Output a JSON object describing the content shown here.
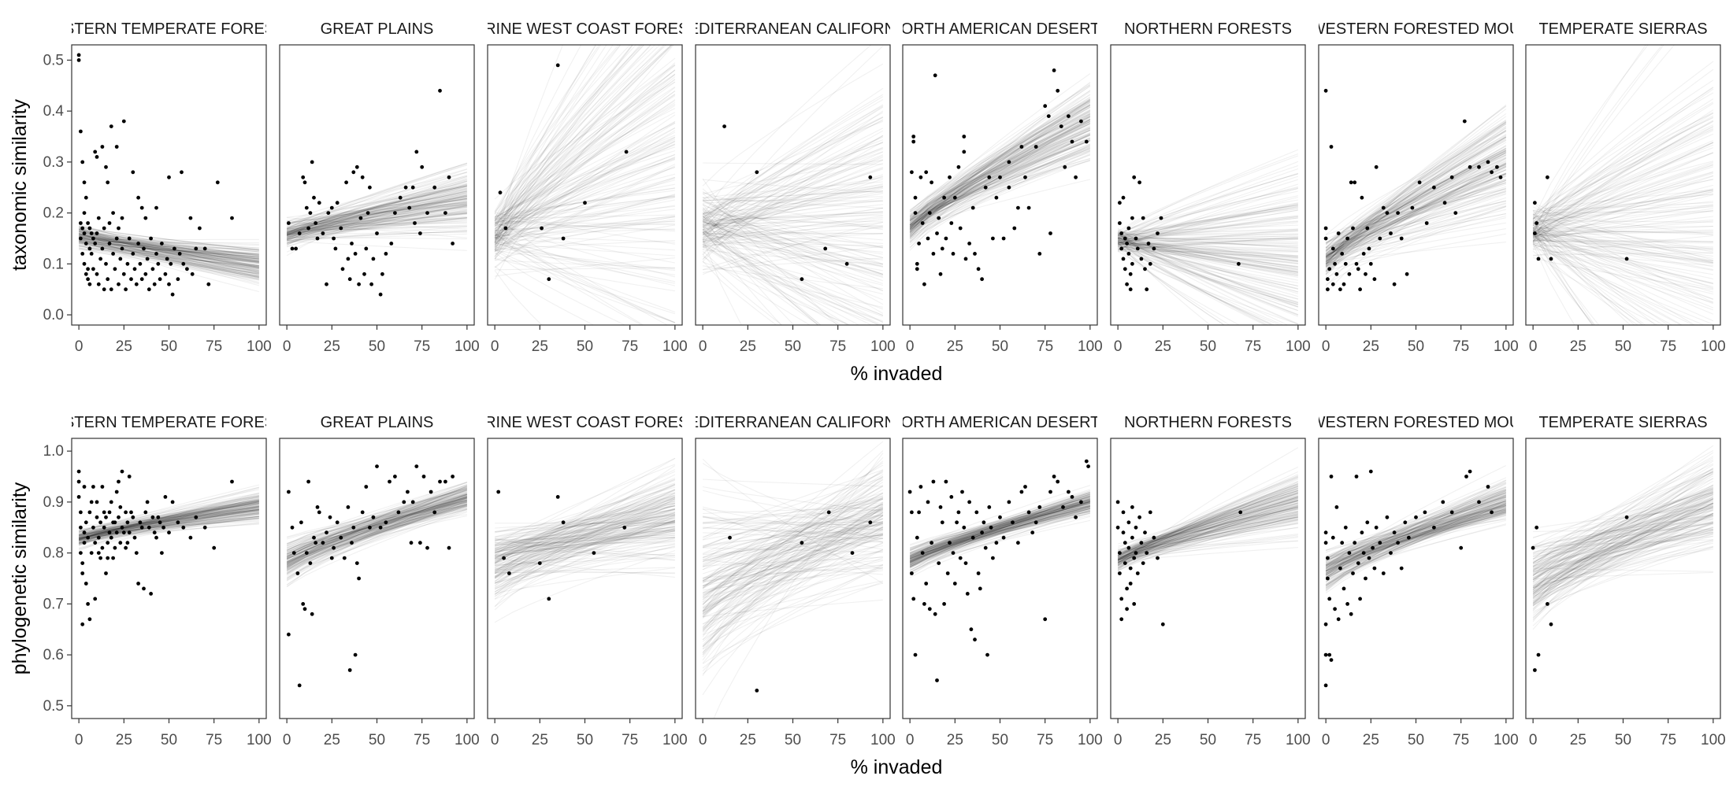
{
  "chart_data": [
    {
      "type": "scatter",
      "xlabel": "% invaded",
      "ylabel": "taxonomic similarity",
      "xlim": [
        -4,
        104
      ],
      "ylim": [
        -0.02,
        0.53
      ],
      "xticks": [
        0,
        25,
        50,
        75,
        100
      ],
      "yticks": [
        0.0,
        0.1,
        0.2,
        0.3,
        0.4,
        0.5
      ],
      "ytick_labels": [
        "0.0",
        "0.1",
        "0.2",
        "0.3",
        "0.4",
        "0.5"
      ],
      "panels": [
        {
          "strip": "EASTERN TEMPERATE FORESTS",
          "fit": {
            "y0": 0.155,
            "y100": 0.098,
            "spread0": 0.012,
            "spread100": 0.02
          },
          "points_text": "0,0.51 0,0.50 1,0.36 2,0.30 3,0.26 4,0.23 5,0.18 6,0.17 8,0.15 9,0.32 10,0.31 13,0.33 15,0.29 16,0.26 18,0.37 21,0.33 25,0.38 30,0.28 33,0.23 35,0.21 37,0.19 43,0.21 50,0.27 57,0.28 62,0.19 67,0.17 70,0.13 77,0.26 85,0.19 5,0.09 5,0.07 6,0.06 6,0.13 7,0.12 8,0.09 9,0.14 10,0.08 10,0.16 11,0.06 12,0.11 13,0.13 14,0.05 15,0.10 16,0.07 17,0.14 18,0.05 19,0.12 20,0.09 21,0.15 22,0.06 23,0.11 24,0.13 25,0.08 26,0.05 27,0.10 28,0.15 29,0.07 30,0.12 31,0.09 32,0.06 33,0.14 34,0.10 35,0.07 36,0.13 37,0.08 38,0.11 39,0.05 40,0.15 41,0.09 42,0.06 43,0.12 44,0.10 45,0.07 46,0.14 48,0.08 49,0.11 50,0.06 51,0.10 52,0.04 53,0.13 55,0.07 56,0.12 58,0.10 60,0.09 63,0.08 65,0.13 72,0.06 1,0.15 2,0.12 3,0.10 3,0.16 4,0.14 4,0.08 1,0.18 2,0.17 3,0.20 7,0.16 11,0.19 14,0.17 17,0.18 19,0.20 22,0.17 24,0.19"
        },
        {
          "strip": "GREAT PLAINS",
          "fit": {
            "y0": 0.158,
            "y100": 0.228,
            "spread0": 0.012,
            "spread100": 0.03
          },
          "points_text": "1,0.18 3,0.13 5,0.13 7,0.16 9,0.27 10,0.26 11,0.21 12,0.17 13,0.20 14,0.30 15,0.23 16,0.18 17,0.15 18,0.22 20,0.16 22,0.06 23,0.20 25,0.21 26,0.15 27,0.13 28,0.22 30,0.17 31,0.09 33,0.26 34,0.11 35,0.07 36,0.14 37,0.28 38,0.12 39,0.29 40,0.06 41,0.19 42,0.27 43,0.08 44,0.13 45,0.20 46,0.25 47,0.06 48,0.11 50,0.16 52,0.04 53,0.08 55,0.12 60,0.20 63,0.23 66,0.25 68,0.21 70,0.25 71,0.18 72,0.32 75,0.29 78,0.20 82,0.25 85,0.44 88,0.20 90,0.27 92,0.14 74,0.16 58,0.14"
        },
        {
          "strip": "MARINE WEST COAST FORESTS",
          "fit": {
            "y0": 0.155,
            "y100": 0.31,
            "spread0": 0.03,
            "spread100": 0.22
          },
          "points_text": "3,0.24 6,0.17 26,0.17 30,0.07 35,0.49 38,0.15 50,0.22 73,0.32"
        },
        {
          "strip": "MEDITERRANEAN CALIFORNIA",
          "fit": {
            "y0": 0.172,
            "y100": 0.168,
            "spread0": 0.04,
            "spread100": 0.16
          },
          "points_text": "12,0.37 30,0.28 55,0.07 68,0.13 80,0.10 93,0.27"
        },
        {
          "strip": "NORTH AMERICAN DESERTS",
          "fit": {
            "y0": 0.17,
            "y100": 0.38,
            "spread0": 0.015,
            "spread100": 0.04
          },
          "points_text": "1,0.28 2,0.35 2,0.34 3,0.23 3,0.20 4,0.10 4,0.09 5,0.14 6,0.27 7,0.18 8,0.06 9,0.28 10,0.15 11,0.20 12,0.26 13,0.12 14,0.47 15,0.16 16,0.19 17,0.08 18,0.13 19,0.23 20,0.15 22,0.27 23,0.18 24,0.12 25,0.23 27,0.29 28,0.17 30,0.32 31,0.11 33,0.14 35,0.21 36,0.12 38,0.09 40,0.07 42,0.25 44,0.27 46,0.15 48,0.23 50,0.27 52,0.15 55,0.30 58,0.17 60,0.21 62,0.33 64,0.27 66,0.21 70,0.33 72,0.12 75,0.41 77,0.39 78,0.16 80,0.48 82,0.44 84,0.37 86,0.29 88,0.39 90,0.34 92,0.27 95,0.38 98,0.34 30,0.35 55,0.25"
        },
        {
          "strip": "NORTHERN FORESTS",
          "fit": {
            "y0": 0.147,
            "y100": 0.11,
            "spread0": 0.01,
            "spread100": 0.1
          },
          "points_text": "1,0.22 1,0.18 2,0.16 2,0.13 3,0.11 3,0.23 4,0.15 4,0.09 5,0.14 5,0.06 6,0.17 6,0.12 7,0.08 7,0.05 8,0.19 8,0.10 9,0.27 10,0.15 11,0.13 12,0.26 13,0.11 14,0.19 15,0.09 16,0.05 17,0.14 18,0.10 20,0.13 22,0.16 24,0.19 67,0.10"
        },
        {
          "strip": "NORTHWESTERN FORESTED MOUNTAINS",
          "fit": {
            "y0": 0.11,
            "y100": 0.3,
            "spread0": 0.018,
            "spread100": 0.05
          },
          "points_text": "0,0.44 0,0.17 0,0.15 1,0.07 1,0.05 2,0.09 3,0.33 4,0.06 4,0.13 5,0.10 6,0.08 7,0.16 8,0.05 9,0.12 10,0.06 11,0.10 12,0.15 13,0.08 14,0.26 15,0.17 16,0.26 17,0.10 18,0.09 19,0.05 20,0.23 21,0.12 22,0.08 23,0.17 24,0.13 25,0.10 27,0.07 28,0.29 30,0.15 32,0.21 34,0.20 36,0.16 38,0.06 40,0.20 42,0.15 45,0.08 48,0.21 52,0.26 56,0.18 60,0.25 66,0.22 70,0.27 72,0.20 77,0.38 80,0.29 85,0.29 90,0.30 92,0.28 95,0.29 97,0.27"
        },
        {
          "strip": "TEMPERATE SIERRAS",
          "fit": {
            "y0": 0.165,
            "y100": 0.17,
            "spread0": 0.02,
            "spread100": 0.2
          },
          "points_text": "1,0.22 1,0.16 2,0.18 3,0.11 8,0.27 10,0.11 52,0.11"
        }
      ]
    },
    {
      "type": "scatter",
      "xlabel": "% invaded",
      "ylabel": "phylogenetic similarity",
      "xlim": [
        -4,
        104
      ],
      "ylim": [
        0.475,
        1.025
      ],
      "xticks": [
        0,
        25,
        50,
        75,
        100
      ],
      "yticks": [
        0.5,
        0.6,
        0.7,
        0.8,
        0.9,
        1.0
      ],
      "ytick_labels": [
        "0.5",
        "0.6",
        "0.7",
        "0.8",
        "0.9",
        "1.0"
      ],
      "panels": [
        {
          "strip": "EASTERN TEMPERATE FORESTS",
          "fit": {
            "y0": 0.828,
            "y100": 0.89,
            "spread0": 0.008,
            "spread100": 0.015
          },
          "points_text": "0,0.96 0,0.94 0,0.91 1,0.88 1,0.85 1,0.80 2,0.78 2,0.76 2,0.66 3,0.93 3,0.84 4,0.74 5,0.70 6,0.67 7,0.90 8,0.93 9,0.71 10,0.87 11,0.80 12,0.79 13,0.93 14,0.88 15,0.76 16,0.82 17,0.84 18,0.90 19,0.79 20,0.86 21,0.92 22,0.94 23,0.89 24,0.96 25,0.84 26,0.88 27,0.82 28,0.95 30,0.87 32,0.80 33,0.74 35,0.85 36,0.73 38,0.90 40,0.72 42,0.84 44,0.87 46,0.80 48,0.91 50,0.84 52,0.90 55,0.86 58,0.85 62,0.83 65,0.87 70,0.85 75,0.81 85,0.94 3,0.82 4,0.86 5,0.83 6,0.88 7,0.80 8,0.85 9,0.82 10,0.90 11,0.83 12,0.86 13,0.81 14,0.85 15,0.87 16,0.79 17,0.88 18,0.83 19,0.86 20,0.81 21,0.84 22,0.87 23,0.82 24,0.85 26,0.81 27,0.86 28,0.84 29,0.88 31,0.83 34,0.86 37,0.88 39,0.85 41,0.87 43,0.83 45,0.86 47,0.85"
        },
        {
          "strip": "GREAT PLAINS",
          "fit": {
            "y0": 0.78,
            "y100": 0.908,
            "spread0": 0.018,
            "spread100": 0.015
          },
          "points_text": "1,0.92 1,0.64 3,0.85 4,0.80 6,0.76 7,0.54 8,0.86 9,0.70 10,0.69 11,0.80 12,0.94 13,0.78 14,0.68 15,0.83 16,0.82 17,0.89 18,0.88 20,0.82 22,0.84 24,0.87 25,0.79 26,0.81 28,0.86 30,0.83 32,0.79 34,0.89 35,0.57 36,0.82 37,0.85 38,0.60 39,0.78 40,0.75 42,0.88 44,0.93 46,0.85 48,0.87 50,0.97 52,0.85 55,0.86 57,0.94 60,0.95 62,0.88 65,0.90 67,0.92 69,0.82 70,0.90 72,0.97 74,0.82 76,0.95 78,0.81 80,0.92 82,0.88 85,0.94 88,0.94 90,0.81 92,0.95"
        },
        {
          "strip": "MARINE WEST COAST FORESTS",
          "fit": {
            "y0": 0.78,
            "y100": 0.88,
            "spread0": 0.035,
            "spread100": 0.05
          },
          "points_text": "2,0.92 5,0.79 8,0.76 25,0.78 30,0.71 35,0.91 38,0.86 55,0.80 72,0.85"
        },
        {
          "strip": "MEDITERRANEAN CALIFORNIA",
          "fit": {
            "y0": 0.73,
            "y100": 0.87,
            "spread0": 0.09,
            "spread100": 0.06
          },
          "points_text": "15,0.83 30,0.53 55,0.82 70,0.88 83,0.80 93,0.86"
        },
        {
          "strip": "NORTH AMERICAN DESERTS",
          "fit": {
            "y0": 0.785,
            "y100": 0.9,
            "spread0": 0.012,
            "spread100": 0.012
          },
          "points_text": "0,0.92 1,0.88 1,0.76 2,0.71 3,0.60 4,0.83 5,0.88 6,0.93 7,0.80 8,0.70 9,0.74 10,0.90 11,0.69 12,0.82 13,0.94 14,0.68 15,0.55 16,0.78 17,0.89 18,0.86 19,0.70 20,0.94 21,0.76 22,0.82 23,0.91 24,0.80 25,0.74 26,0.86 27,0.88 28,0.79 29,0.92 30,0.85 31,0.78 32,0.72 33,0.90 34,0.65 35,0.83 36,0.63 37,0.88 38,0.76 39,0.73 40,0.84 41,0.86 42,0.81 43,0.60 44,0.89 45,0.85 46,0.79 48,0.82 50,0.87 52,0.83 55,0.90 57,0.86 60,0.82 62,0.92 64,0.93 66,0.88 68,0.84 70,0.86 72,0.89 75,0.67 78,0.92 80,0.95 82,0.94 85,0.89 88,0.92 90,0.91 92,0.87 95,0.90 98,0.98 99,0.97"
        },
        {
          "strip": "NORTHERN FORESTS",
          "fit": {
            "y0": 0.785,
            "y100": 0.9,
            "spread0": 0.01,
            "spread100": 0.03
          },
          "points_text": "0,0.90 0,0.85 1,0.80 1,0.76 2,0.71 2,0.67 3,0.88 3,0.84 4,0.82 4,0.78 5,0.73 5,0.69 6,0.86 6,0.81 7,0.77 7,0.74 8,0.89 8,0.83 9,0.79 9,0.70 10,0.85 10,0.80 11,0.76 12,0.87 13,0.82 14,0.78 15,0.84 16,0.80 18,0.88 20,0.83 22,0.79 25,0.66 68,0.88"
        },
        {
          "strip": "NORTHWESTERN FORESTED MOUNTAINS",
          "fit": {
            "y0": 0.762,
            "y100": 0.9,
            "spread0": 0.018,
            "spread100": 0.02
          },
          "points_text": "0,0.84 0,0.82 0,0.66 0,0.60 0,0.54 1,0.79 1,0.75 2,0.71 2,0.60 3,0.59 3,0.95 4,0.83 5,0.69 6,0.89 7,0.67 8,0.77 9,0.82 10,0.73 11,0.85 12,0.70 13,0.80 14,0.68 15,0.76 16,0.82 17,0.95 18,0.78 19,0.71 20,0.84 21,0.80 22,0.75 23,0.86 24,0.79 25,0.96 26,0.81 27,0.77 28,0.85 30,0.82 32,0.76 34,0.87 36,0.80 38,0.84 40,0.82 42,0.77 44,0.86 46,0.83 50,0.87 55,0.88 60,0.85 65,0.90 70,0.88 75,0.81 78,0.95 80,0.96 85,0.90 90,0.93 92,0.88"
        },
        {
          "strip": "TEMPERATE SIERRAS",
          "fit": {
            "y0": 0.745,
            "y100": 0.9,
            "spread0": 0.04,
            "spread100": 0.045
          },
          "points_text": "0,0.81 1,0.57 2,0.85 3,0.60 8,0.70 10,0.66 52,0.87"
        }
      ]
    }
  ]
}
